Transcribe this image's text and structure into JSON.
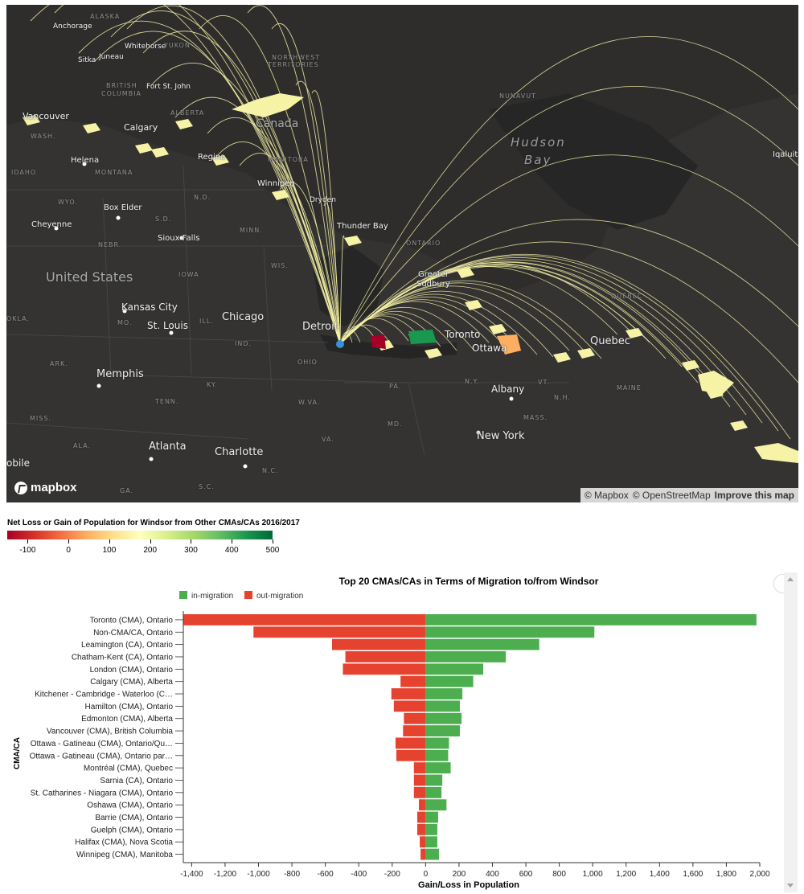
{
  "map": {
    "labels": {
      "alaska": "ALASKA",
      "anchorage": "Anchorage",
      "whitehorse": "Whitehorse",
      "yukon": "YUKON",
      "juneau": "Juneau",
      "sitka": "Sitka",
      "northwest": "NORTHWEST",
      "territories": "TERRITORIES",
      "british": "BRITISH",
      "columbia": "COLUMBIA",
      "fort_st_john": "Fort St. John",
      "nunavut": "NUNAVUT",
      "vancouver": "Vancouver",
      "alberta": "ALBERTA",
      "canada": "Canada",
      "calgary": "Calgary",
      "wash": "WASH.",
      "hudson": "Hudson",
      "bay": "Bay",
      "iqaluit": "Iqaluit",
      "helena": "Helena",
      "regina": "Regina",
      "manitoba": "MANITOBA",
      "idaho": "IDAHO",
      "montana": "MONTANA",
      "winnipeg": "Winnipeg",
      "wyo": "WYO.",
      "box_elder": "Box Elder",
      "nd": "N.D.",
      "dryden": "Dryden",
      "sd": "S.D.",
      "cheyenne": "Cheyenne",
      "thunder_bay": "Thunder Bay",
      "minn": "MINN.",
      "nebr": "NEBR.",
      "sioux_falls": "Sioux Falls",
      "ontario": "ONTARIO",
      "wis": "WIS.",
      "united_states": "United States",
      "iowa": "IOWA",
      "greater_sudbury": "Greater",
      "greater_sudbury2": "Sudbury",
      "kansas_city": "Kansas City",
      "quebec": "QUÉBEC",
      "okla": "OKLA.",
      "mo": "MO.",
      "st_louis": "St. Louis",
      "ill": "ILL.",
      "chicago": "Chicago",
      "detroit": "Detroit",
      "toronto": "Toronto",
      "ottawa": "Ottawa",
      "quebec_city": "Quebec",
      "ind": "IND.",
      "ark": "ARK.",
      "memphis": "Memphis",
      "ohio": "OHIO",
      "ky": "KY.",
      "ny": "N.Y.",
      "vt": "VT.",
      "albany": "Albany",
      "maine": "MAINE",
      "nh": "N.H.",
      "pa": "PA.",
      "tenn": "TENN.",
      "wva": "W.VA.",
      "miss": "MISS.",
      "mass": "MASS.",
      "md": "MD.",
      "new_york": "New York",
      "ala": "ALA.",
      "atlanta": "Atlanta",
      "va": "VA.",
      "charlotte": "Charlotte",
      "nc": "N.C.",
      "mobile": "obile",
      "ga": "GA.",
      "sc": "S.C."
    },
    "logo": "mapbox",
    "attribution": {
      "mapbox": "© Mapbox",
      "osm": "© OpenStreetMap",
      "improve": "Improve this map"
    },
    "flow_color": "#f6f2a6",
    "origin_color": "#3a8fd8"
  },
  "legend": {
    "title": "Net Loss or Gain of Population for Windsor from Other CMAs/CAs 2016/2017",
    "ticks": [
      {
        "label": "-100",
        "value": -100
      },
      {
        "label": "0",
        "value": 0
      },
      {
        "label": "100",
        "value": 100
      },
      {
        "label": "200",
        "value": 200
      },
      {
        "label": "300",
        "value": 300
      },
      {
        "label": "400",
        "value": 400
      },
      {
        "label": "500",
        "value": 500
      }
    ],
    "range": [
      -150,
      500
    ],
    "colors": [
      "#a50026",
      "#d73027",
      "#f46d43",
      "#fdae61",
      "#fee08b",
      "#ffffbf",
      "#d9ef8b",
      "#a6d96a",
      "#66bd63",
      "#1a9850",
      "#006837"
    ]
  },
  "chart_data": {
    "type": "bar",
    "title": "Top 20 CMAs/CAs in Terms of Migration to/from Windsor",
    "xlabel": "Gain/Loss in Population",
    "ylabel": "CMA/CA",
    "xlim": [
      -1450,
      2000
    ],
    "xticks": [
      "-1,400",
      "-1,200",
      "-1,000",
      "-800",
      "-600",
      "-400",
      "-200",
      "0",
      "200",
      "400",
      "600",
      "800",
      "1,000",
      "1,200",
      "1,400",
      "1,600",
      "1,800",
      "2,000"
    ],
    "legend_position": "top-left",
    "categories": [
      "Toronto (CMA), Ontario",
      "Non-CMA/CA, Ontario",
      "Leamington (CA), Ontario",
      "Chatham-Kent (CA), Ontario",
      "London (CMA), Ontario",
      "Calgary (CMA), Alberta",
      "Kitchener - Cambridge - Waterloo (C…",
      "Hamilton (CMA), Ontario",
      "Edmonton (CMA), Alberta",
      "Vancouver (CMA), British Columbia",
      "Ottawa - Gatineau (CMA), Ontario/Qu…",
      "Ottawa - Gatineau (CMA), Ontario par…",
      "Montréal (CMA), Quebec",
      "Sarnia (CA), Ontario",
      "St. Catharines - Niagara (CMA), Ontario",
      "Oshawa (CMA), Ontario",
      "Barrie (CMA), Ontario",
      "Guelph (CMA), Ontario",
      "Halifax (CMA), Nova Scotia",
      "Winnipeg (CMA), Manitoba"
    ],
    "series": [
      {
        "name": "in-migration",
        "color": "#4cae4f",
        "values": [
          1980,
          1010,
          680,
          480,
          345,
          285,
          220,
          205,
          215,
          205,
          140,
          135,
          150,
          100,
          95,
          125,
          75,
          70,
          70,
          80
        ]
      },
      {
        "name": "out-migration",
        "color": "#e5432f",
        "values": [
          -1450,
          -1030,
          -560,
          -480,
          -495,
          -150,
          -205,
          -190,
          -130,
          -135,
          -180,
          -175,
          -70,
          -70,
          -70,
          -40,
          -50,
          -50,
          -35,
          -30
        ]
      }
    ]
  }
}
